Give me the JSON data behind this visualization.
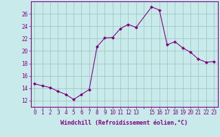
{
  "x_values": [
    0,
    1,
    2,
    3,
    4,
    5,
    6,
    7,
    8,
    9,
    10,
    11,
    12,
    13,
    15,
    16,
    17,
    18,
    19,
    20,
    21,
    22,
    23
  ],
  "y_values": [
    14.7,
    14.4,
    14.1,
    13.5,
    13.0,
    12.2,
    13.0,
    13.8,
    20.7,
    22.1,
    22.2,
    23.6,
    24.3,
    23.8,
    27.1,
    26.6,
    21.0,
    21.5,
    20.5,
    19.8,
    18.7,
    18.2,
    18.3
  ],
  "line_color": "#800080",
  "marker_color": "#800080",
  "bg_color": "#c8eaea",
  "grid_color": "#9fbebe",
  "axis_color": "#800080",
  "xlabel": "Windchill (Refroidissement éolien,°C)",
  "xtick_labels": [
    "0",
    "1",
    "2",
    "3",
    "4",
    "5",
    "6",
    "7",
    "8",
    "9",
    "10",
    "11",
    "12",
    "13",
    "",
    "15",
    "16",
    "17",
    "18",
    "19",
    "20",
    "21",
    "22",
    "23"
  ],
  "xtick_positions": [
    0,
    1,
    2,
    3,
    4,
    5,
    6,
    7,
    8,
    9,
    10,
    11,
    12,
    13,
    14,
    15,
    16,
    17,
    18,
    19,
    20,
    21,
    22,
    23
  ],
  "yticks": [
    12,
    14,
    16,
    18,
    20,
    22,
    24,
    26
  ],
  "ylim": [
    11.0,
    28.0
  ],
  "xlim": [
    -0.5,
    23.5
  ],
  "font_size": 5.5,
  "label_font_size": 6.0
}
